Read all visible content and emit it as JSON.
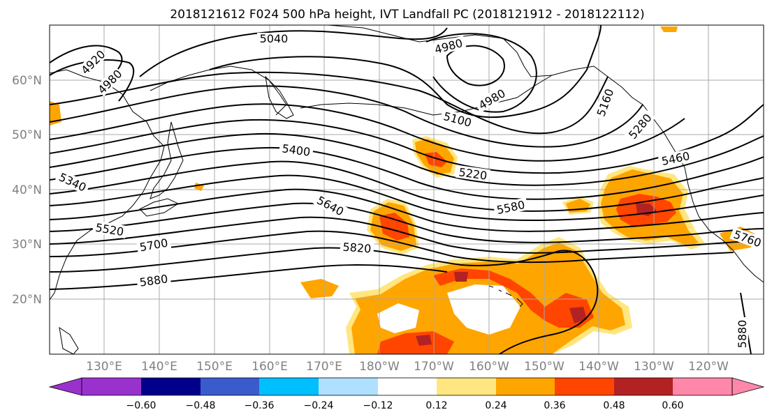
{
  "title": "2018121612 F024 500 hPa height, IVT Landfall PC (2018121912 - 2018122112)",
  "lat_labels": [
    "60°N",
    "50°N",
    "40°N",
    "30°N",
    "20°N"
  ],
  "lon_labels": [
    "130°E",
    "140°E",
    "150°E",
    "160°E",
    "170°E",
    "180°W",
    "170°W",
    "160°W",
    "150°W",
    "140°W",
    "130°W",
    "120°W"
  ],
  "contour_labels": [
    "4920",
    "4980",
    "5040",
    "4980",
    "4980",
    "5100",
    "5160",
    "5280",
    "5400",
    "5220",
    "5460",
    "5340",
    "5520",
    "5640",
    "5580",
    "5700",
    "5820",
    "5760",
    "5880",
    "5880"
  ],
  "colorbar": {
    "tick_labels": [
      "−0.60",
      "−0.48",
      "−0.36",
      "−0.24",
      "−0.12",
      "0.12",
      "0.24",
      "0.36",
      "0.48",
      "0.60"
    ],
    "colors": [
      "#9932cc",
      "#00008b",
      "#3a5bcc",
      "#00bfff",
      "#b0e0ff",
      "#ffffff",
      "#ffe680",
      "#ffa500",
      "#ff4500",
      "#b22222",
      "#ff88aa"
    ]
  },
  "shading_colors": {
    "light": "#ffe680",
    "orange": "#ffa500",
    "red": "#ff4500",
    "darkred": "#b22222"
  }
}
